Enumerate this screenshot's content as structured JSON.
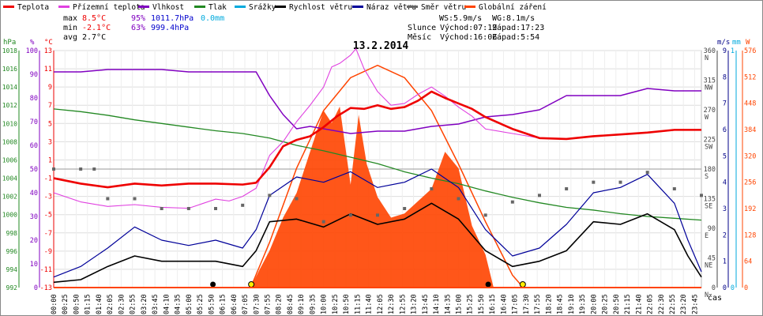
{
  "legend": [
    {
      "label": "Teplota",
      "color": "#ee0000"
    },
    {
      "label": "Přízemní teplota",
      "color": "#e040e0"
    },
    {
      "label": "Vlhkost",
      "color": "#8000c0"
    },
    {
      "label": "Tlak",
      "color": "#228822"
    },
    {
      "label": "Srážky",
      "color": "#00aadd"
    },
    {
      "label": "Rychlost větru",
      "color": "#000000"
    },
    {
      "label": "Náraz větru",
      "color": "#000099"
    },
    {
      "label": "Směr větru",
      "color": "#666666"
    },
    {
      "label": "Globální záření",
      "color": "#ff4400"
    }
  ],
  "stats": {
    "max": {
      "label": "max",
      "temp": "8.5°C",
      "hum": "95%",
      "press": "1011.7hPa",
      "rain": "0.0mm"
    },
    "min": {
      "label": "min",
      "temp": "-2.1°C",
      "hum": "63%",
      "press": "999.4hPa"
    },
    "avg": {
      "label": "avg",
      "temp": "2.7°C"
    }
  },
  "wind_info": {
    "ws": "WS:5.9m/s",
    "wg": "WG:8.1m/s"
  },
  "sun_info": {
    "label": "Slunce",
    "rise": "Východ:07:19",
    "set": "Západ:17:23"
  },
  "moon_info": {
    "label": "Měsíc",
    "rise": "Východ:16:06",
    "set": "Západ:5:54"
  },
  "chart_data": {
    "type": "line",
    "title": "13.2.2014",
    "xlabel": "čas",
    "axes": {
      "pressure": {
        "unit": "hPa",
        "range": [
          992,
          1018
        ],
        "ticks": [
          "992",
          "994",
          "996",
          "998",
          "1000",
          "1002",
          "1004",
          "1006",
          "1008",
          "1010",
          "1012",
          "1014",
          "1016",
          "1018"
        ]
      },
      "humidity": {
        "unit": "%",
        "range": [
          0,
          100
        ],
        "ticks": [
          "0",
          "10",
          "20",
          "30",
          "40",
          "50",
          "60",
          "70",
          "80",
          "90",
          "100"
        ]
      },
      "temperature": {
        "unit": "°C",
        "range": [
          -13,
          13
        ],
        "ticks": [
          "-13",
          "-11",
          "-9",
          "-7",
          "-5",
          "-3",
          "-1",
          "1",
          "3",
          "5",
          "7",
          "9",
          "11",
          "13"
        ]
      },
      "wind_dir": {
        "unit": "°",
        "range": [
          0,
          360
        ],
        "ticks": [
          "0",
          "45",
          "90",
          "135",
          "180",
          "225",
          "270",
          "315",
          "360"
        ],
        "compass": [
          "N",
          "NE",
          "E",
          "SE",
          "S",
          "SW",
          "W",
          "NW",
          "N"
        ]
      },
      "wind_speed": {
        "unit": "m/s",
        "range": [
          0,
          9
        ],
        "ticks": [
          "0",
          "1",
          "2",
          "3",
          "4",
          "5",
          "6",
          "7",
          "8",
          "9"
        ]
      },
      "rain": {
        "unit": "mm",
        "range": [
          0,
          1
        ],
        "ticks": [
          "0",
          "1"
        ]
      },
      "radiation": {
        "unit": "W",
        "range": [
          0,
          576
        ],
        "ticks": [
          "0",
          "64",
          "128",
          "192",
          "256",
          "320",
          "384",
          "448",
          "512",
          "576"
        ]
      }
    },
    "x_ticks": [
      "00:00",
      "00:25",
      "00:50",
      "01:15",
      "01:40",
      "02:05",
      "02:30",
      "02:55",
      "03:20",
      "03:45",
      "04:10",
      "04:35",
      "05:00",
      "05:25",
      "05:50",
      "06:15",
      "06:40",
      "07:05",
      "07:30",
      "07:55",
      "08:20",
      "08:45",
      "09:10",
      "09:35",
      "10:00",
      "10:25",
      "10:50",
      "11:15",
      "11:40",
      "12:05",
      "12:30",
      "12:55",
      "13:20",
      "13:45",
      "14:10",
      "14:35",
      "15:00",
      "15:25",
      "15:50",
      "16:15",
      "16:40",
      "17:05",
      "17:30",
      "17:55",
      "18:20",
      "18:45",
      "19:10",
      "19:35",
      "20:00",
      "20:25",
      "20:50",
      "21:15",
      "21:40",
      "22:05",
      "22:30",
      "22:55",
      "23:20",
      "23:45"
    ],
    "series": [
      {
        "name": "Teplota",
        "axis": "temperature",
        "color": "#ee0000",
        "x": [
          0,
          1,
          2,
          3,
          4,
          5,
          6,
          7,
          7.5,
          8,
          8.5,
          9,
          9.5,
          10,
          10.5,
          11,
          11.5,
          12,
          12.5,
          13,
          13.5,
          14,
          14.5,
          15,
          15.5,
          16,
          17,
          18,
          19,
          20,
          21,
          22,
          23,
          24
        ],
        "y": [
          -1.0,
          -1.6,
          -2.0,
          -1.6,
          -1.8,
          -1.6,
          -1.6,
          -1.7,
          -1.5,
          0.2,
          2.5,
          3.2,
          3.6,
          4.6,
          5.8,
          6.7,
          6.6,
          7.0,
          6.6,
          6.8,
          7.5,
          8.5,
          7.8,
          7.2,
          6.6,
          5.7,
          4.4,
          3.4,
          3.3,
          3.6,
          3.8,
          4.0,
          4.3,
          4.3
        ]
      },
      {
        "name": "Přízemní teplota",
        "axis": "temperature",
        "color": "#e040e0",
        "x": [
          0,
          1,
          2,
          3,
          4,
          5,
          6,
          6.5,
          7,
          7.5,
          8,
          8.5,
          9,
          9.5,
          10,
          10.3,
          10.6,
          11,
          11.2,
          11.5,
          12,
          12.5,
          13,
          13.5,
          14,
          14.5,
          15,
          15.5,
          16,
          17,
          18,
          19,
          20,
          21,
          22,
          23,
          24
        ],
        "y": [
          -2.6,
          -3.6,
          -4.1,
          -3.9,
          -4.2,
          -4.3,
          -3.3,
          -3.5,
          -3.0,
          -2.1,
          1.5,
          3.0,
          5.2,
          7.0,
          9.0,
          11.2,
          11.6,
          12.5,
          13.2,
          11.0,
          8.5,
          7.0,
          7.2,
          8.2,
          9.0,
          8.0,
          6.8,
          5.8,
          4.4,
          3.9,
          3.4,
          3.3,
          3.6,
          3.8,
          4.0,
          4.3,
          4.3
        ]
      },
      {
        "name": "Vlhkost",
        "axis": "humidity",
        "color": "#8000c0",
        "x": [
          0,
          1,
          2,
          3,
          4,
          5,
          6,
          7,
          7.5,
          8,
          8.5,
          9,
          9.5,
          10,
          11,
          12,
          13,
          14,
          15,
          16,
          17,
          18,
          19,
          20,
          21,
          22,
          23,
          24
        ],
        "y": [
          91,
          91,
          92,
          92,
          92,
          91,
          91,
          91,
          91,
          81,
          73,
          67,
          68,
          67,
          65,
          66,
          66,
          68,
          69,
          72,
          73,
          75,
          81,
          81,
          81,
          84,
          83,
          83
        ]
      },
      {
        "name": "Tlak",
        "axis": "pressure",
        "color": "#228822",
        "x": [
          0,
          1,
          2,
          3,
          4,
          5,
          6,
          7,
          8,
          9,
          10,
          11,
          12,
          13,
          14,
          15,
          16,
          17,
          18,
          19,
          20,
          21,
          22,
          23,
          24
        ],
        "y": [
          1011.6,
          1011.3,
          1010.9,
          1010.4,
          1010.0,
          1009.6,
          1009.2,
          1008.9,
          1008.4,
          1007.6,
          1007.0,
          1006.3,
          1005.6,
          1004.7,
          1004.0,
          1003.4,
          1002.6,
          1001.9,
          1001.3,
          1000.8,
          1000.5,
          1000.1,
          999.8,
          999.6,
          999.4
        ]
      },
      {
        "name": "Rychlost větru",
        "axis": "wind_speed",
        "color": "#000000",
        "x": [
          0,
          1,
          2,
          3,
          4,
          5,
          6,
          7,
          7.5,
          8,
          9,
          10,
          11,
          12,
          13,
          14,
          15,
          16,
          17,
          18,
          19,
          20,
          21,
          22,
          23,
          23.5,
          24
        ],
        "y": [
          0.2,
          0.3,
          0.8,
          1.2,
          1.0,
          1.0,
          1.0,
          0.8,
          1.4,
          2.5,
          2.6,
          2.3,
          2.8,
          2.4,
          2.6,
          3.2,
          2.6,
          1.4,
          0.8,
          1.0,
          1.4,
          2.5,
          2.4,
          2.8,
          2.2,
          1.2,
          0.4
        ]
      },
      {
        "name": "Náraz větru",
        "axis": "wind_speed",
        "color": "#000099",
        "x": [
          0,
          1,
          2,
          3,
          4,
          5,
          6,
          7,
          7.5,
          8,
          9,
          10,
          11,
          12,
          13,
          14,
          15,
          16,
          17,
          18,
          19,
          20,
          21,
          22,
          23,
          23.5,
          24
        ],
        "y": [
          0.4,
          0.8,
          1.5,
          2.3,
          1.8,
          1.6,
          1.8,
          1.5,
          2.2,
          3.5,
          4.2,
          4.0,
          4.4,
          3.8,
          4.0,
          4.5,
          3.8,
          2.2,
          1.2,
          1.5,
          2.4,
          3.6,
          3.8,
          4.3,
          3.2,
          1.8,
          0.6
        ]
      },
      {
        "name": "Směr větru",
        "axis": "wind_dir",
        "color": "#666666",
        "x": [
          0,
          1,
          1.5,
          2,
          3,
          4,
          5,
          6,
          7,
          8,
          9,
          10,
          11,
          12,
          13,
          14,
          15,
          16,
          17,
          18,
          19,
          20,
          21,
          22,
          23,
          24
        ],
        "y": [
          180,
          180,
          180,
          135,
          135,
          120,
          120,
          120,
          125,
          140,
          135,
          100,
          110,
          110,
          120,
          150,
          135,
          110,
          130,
          140,
          150,
          160,
          160,
          175,
          150,
          140
        ]
      },
      {
        "name": "Globální záření",
        "axis": "radiation",
        "color": "#ff4400",
        "x": [
          7.3,
          7.6,
          8,
          8.5,
          9,
          9.5,
          10,
          10.3,
          10.6,
          11,
          11.3,
          11.6,
          12,
          12.5,
          13,
          13.5,
          14,
          14.5,
          15,
          15.5,
          16,
          16.3
        ],
        "y": [
          0,
          40,
          90,
          170,
          230,
          330,
          430,
          400,
          440,
          250,
          420,
          300,
          220,
          170,
          180,
          210,
          240,
          330,
          290,
          150,
          80,
          0
        ]
      }
    ],
    "curves": [
      {
        "name": "clear-sky-radiation",
        "axis": "radiation",
        "color": "#ff4400",
        "x": [
          7.3,
          8,
          9,
          10,
          11,
          12,
          13,
          14,
          15,
          16,
          17,
          17.4
        ],
        "y": [
          0,
          110,
          290,
          430,
          510,
          540,
          510,
          430,
          300,
          160,
          30,
          0
        ]
      }
    ],
    "markers": {
      "sun": {
        "sunrise": 7.32,
        "sunset": 17.38
      },
      "moon": {
        "rise": 16.1,
        "set": 5.9
      }
    },
    "grid": true
  }
}
